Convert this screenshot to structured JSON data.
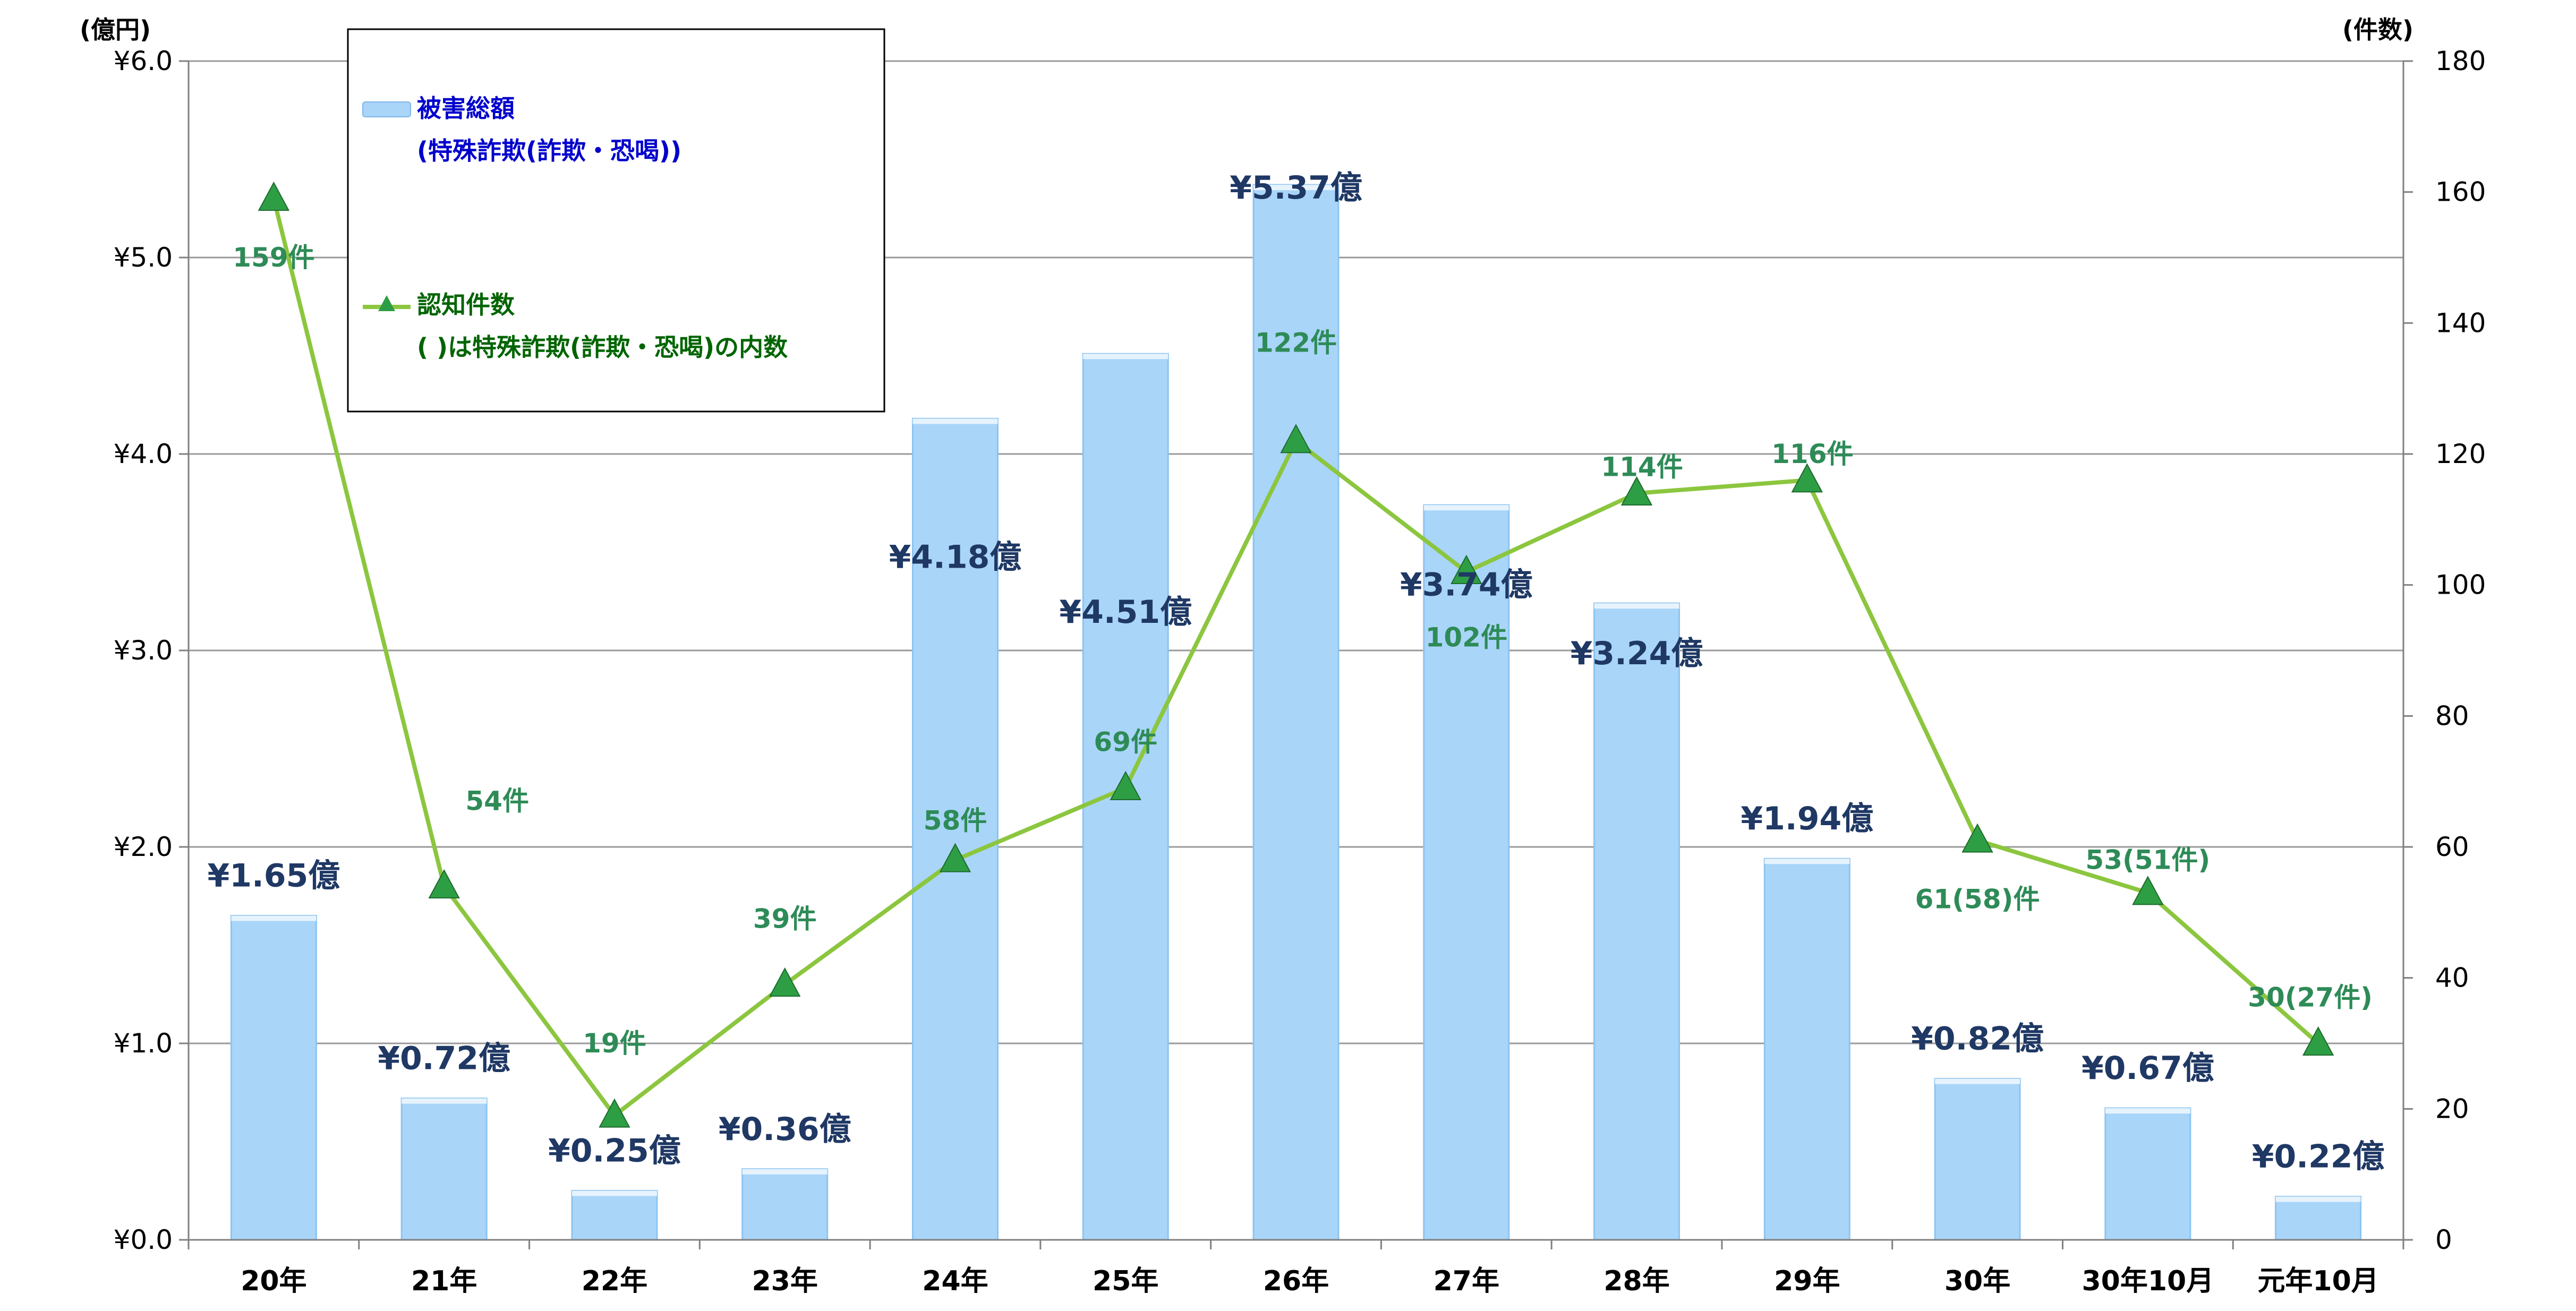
{
  "chart_data": {
    "type": "bar",
    "categories": [
      "20年",
      "21年",
      "22年",
      "23年",
      "24年",
      "25年",
      "26年",
      "27年",
      "28年",
      "29年",
      "30年",
      "30年10月",
      "元年10月"
    ],
    "series": [
      {
        "name": "被害総額",
        "name_note": "(特殊詐欺(詐欺・恐喝))",
        "type": "bar",
        "axis": "left",
        "values": [
          1.65,
          0.72,
          0.25,
          0.36,
          4.18,
          4.51,
          5.37,
          3.74,
          3.24,
          1.94,
          0.82,
          0.67,
          0.22
        ],
        "labels": [
          "¥1.65億",
          "¥0.72億",
          "¥0.25億",
          "¥0.36億",
          "¥4.18億",
          "¥4.51億",
          "¥5.37億",
          "¥3.74億",
          "¥3.24億",
          "¥1.94億",
          "¥0.82億",
          "¥0.67億",
          "¥0.22億"
        ],
        "color": "#a9d5f9"
      },
      {
        "name": "認知件数",
        "name_note": "( )は特殊詐欺(詐欺・恐喝)の内数",
        "type": "line",
        "axis": "right",
        "values": [
          159,
          54,
          19,
          39,
          58,
          69,
          122,
          102,
          114,
          116,
          61,
          53,
          30
        ],
        "labels": [
          "159件",
          "54件",
          "19件",
          "39件",
          "58件",
          "69件",
          "122件",
          "102件",
          "114件",
          "116件",
          "61(58)件",
          "53(51件)",
          "30(27件)"
        ],
        "color": "#8cc63f",
        "marker_color": "#2e9e44"
      }
    ],
    "y_left": {
      "unit": "(億円)",
      "ylim": [
        0,
        6
      ],
      "ticks": [
        "¥0.0",
        "¥1.0",
        "¥2.0",
        "¥3.0",
        "¥4.0",
        "¥5.0",
        "¥6.0"
      ]
    },
    "y_right": {
      "unit": "(件数)",
      "ylim": [
        0,
        180
      ],
      "ticks": [
        "0",
        "20",
        "40",
        "60",
        "80",
        "100",
        "120",
        "140",
        "160",
        "180"
      ]
    },
    "grid": true,
    "legend_position": "top-left"
  }
}
